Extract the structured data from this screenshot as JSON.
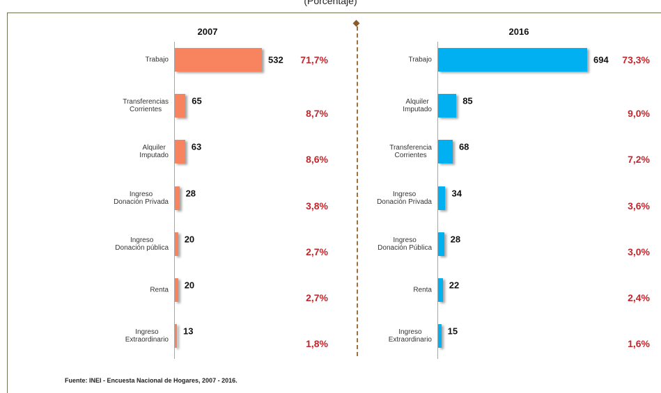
{
  "subtitle": "(Porcentaje)",
  "source": "Fuente: INEI - Encuesta Nacional de Hogares, 2007 - 2016.",
  "chart_data": [
    {
      "type": "bar",
      "orientation": "horizontal",
      "title": "2007",
      "color": "#f7845e",
      "categories": [
        "Trabajo",
        "Transferencias\nCorrientes",
        "Alquiler\nImputado",
        "Ingreso\nDonación Privada",
        "Ingreso\nDonación pública",
        "Renta",
        "Ingreso\nExtraordinario"
      ],
      "values": [
        532,
        65,
        63,
        28,
        20,
        20,
        13
      ],
      "percent_values": [
        71.7,
        8.7,
        8.6,
        3.8,
        2.7,
        2.7,
        1.8
      ],
      "percent_labels": [
        "71,7%",
        "8,7%",
        "8,6%",
        "3,8%",
        "2,7%",
        "2,7%",
        "1,8%"
      ]
    },
    {
      "type": "bar",
      "orientation": "horizontal",
      "title": "2016",
      "color": "#00b0f0",
      "categories": [
        "Trabajo",
        "Alquiler\nImputado",
        "Transferencia\nCorrientes",
        "Ingreso\nDonación Privada",
        "Ingreso\nDonación Pública",
        "Renta",
        "Ingreso\nExtraordinario"
      ],
      "values": [
        694,
        85,
        68,
        34,
        28,
        22,
        15
      ],
      "percent_values": [
        73.3,
        9.0,
        7.2,
        3.6,
        3.0,
        2.4,
        1.6
      ],
      "percent_labels": [
        "73,3%",
        "9,0%",
        "7,2%",
        "3,6%",
        "3,0%",
        "2,4%",
        "1,6%"
      ]
    }
  ]
}
